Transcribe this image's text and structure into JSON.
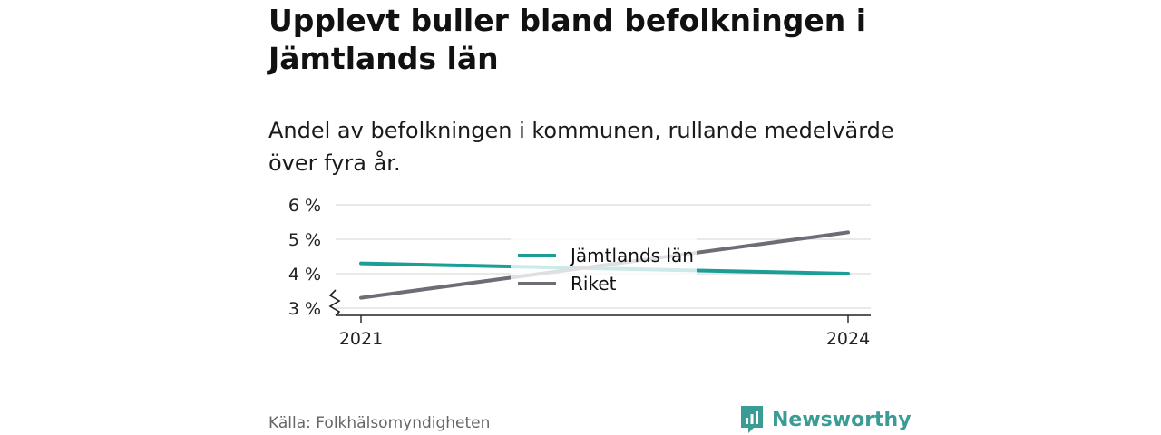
{
  "title": "Upplevt buller bland befolkningen i Jämtlands län",
  "subtitle": "Andel av befolkningen i kommunen, rullande medelvärde över fyra år.",
  "source": "Källa: Folkhälsomyndigheten",
  "brand": {
    "name": "Newsworthy",
    "icon": "newsworthy-logo-icon",
    "color": "#3a9c94"
  },
  "chart_data": {
    "type": "line",
    "x": [
      "2021",
      "2024"
    ],
    "yticks": [
      "3 %",
      "4 %",
      "5 %",
      "6 %"
    ],
    "ylim": [
      3,
      6
    ],
    "axis_break": true,
    "grid": true,
    "legend_position": "center",
    "series": [
      {
        "name": "Jämtlands län",
        "color": "#1a9e96",
        "values": [
          4.3,
          4.0
        ]
      },
      {
        "name": "Riket",
        "color": "#6e6d75",
        "values": [
          3.3,
          5.2
        ]
      }
    ]
  }
}
